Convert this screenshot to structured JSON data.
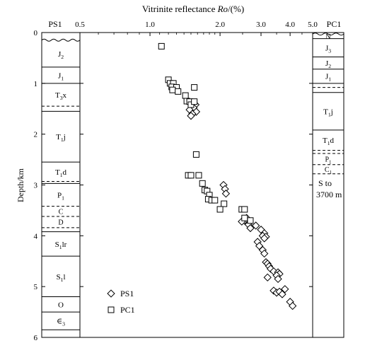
{
  "chart_data": {
    "type": "scatter",
    "title": "Vitrinite reflectance Ro/(%)",
    "title_parts": {
      "prefix": "Vitrinite reflectance ",
      "italic": "Ro",
      "suffix": "/(%)"
    },
    "xlabel": "Vitrinite reflectance Ro/(%)",
    "ylabel": "Depth/km",
    "x_scale": "log",
    "xlim": [
      0.5,
      5.0
    ],
    "ylim": [
      0,
      6
    ],
    "x_ticks": [
      {
        "value": 0.5,
        "label": "0.5"
      },
      {
        "value": 1.0,
        "label": "1.0"
      },
      {
        "value": 2.0,
        "label": "2.0"
      },
      {
        "value": 3.0,
        "label": "3.0"
      },
      {
        "value": 4.0,
        "label": "4.0"
      },
      {
        "value": 5.0,
        "label": "5.0"
      }
    ],
    "y_ticks": [
      {
        "value": 0,
        "label": "0"
      },
      {
        "value": 1,
        "label": "1"
      },
      {
        "value": 2,
        "label": "2"
      },
      {
        "value": 3,
        "label": "3"
      },
      {
        "value": 4,
        "label": "4"
      },
      {
        "value": 5,
        "label": "5"
      },
      {
        "value": 6,
        "label": "6"
      }
    ],
    "grid": false,
    "legend_position": "bottom-left",
    "series": [
      {
        "name": "PS1",
        "marker": "diamond",
        "points": [
          [
            1.57,
            1.42
          ],
          [
            1.54,
            1.48
          ],
          [
            1.48,
            1.52
          ],
          [
            1.58,
            1.56
          ],
          [
            1.52,
            1.6
          ],
          [
            1.5,
            1.64
          ],
          [
            2.07,
            3.0
          ],
          [
            2.1,
            3.08
          ],
          [
            2.12,
            3.17
          ],
          [
            2.6,
            3.65
          ],
          [
            2.55,
            3.7
          ],
          [
            2.48,
            3.72
          ],
          [
            2.65,
            3.78
          ],
          [
            2.7,
            3.85
          ],
          [
            2.85,
            3.8
          ],
          [
            3.0,
            3.88
          ],
          [
            3.1,
            3.95
          ],
          [
            3.05,
            4.0
          ],
          [
            3.15,
            4.02
          ],
          [
            3.1,
            4.05
          ],
          [
            2.9,
            4.12
          ],
          [
            2.95,
            4.2
          ],
          [
            3.05,
            4.28
          ],
          [
            3.1,
            4.35
          ],
          [
            3.15,
            4.52
          ],
          [
            3.2,
            4.55
          ],
          [
            3.25,
            4.6
          ],
          [
            3.3,
            4.65
          ],
          [
            3.4,
            4.7
          ],
          [
            3.55,
            4.72
          ],
          [
            3.6,
            4.75
          ],
          [
            3.5,
            4.78
          ],
          [
            3.2,
            4.82
          ],
          [
            3.55,
            4.85
          ],
          [
            3.4,
            5.08
          ],
          [
            3.5,
            5.12
          ],
          [
            3.6,
            5.1
          ],
          [
            3.8,
            5.05
          ],
          [
            3.7,
            5.15
          ],
          [
            4.0,
            5.3
          ],
          [
            4.1,
            5.38
          ]
        ]
      },
      {
        "name": "PC1",
        "marker": "square",
        "points": [
          [
            1.12,
            0.27
          ],
          [
            1.2,
            0.93
          ],
          [
            1.22,
            1.0
          ],
          [
            1.26,
            1.0
          ],
          [
            1.24,
            1.07
          ],
          [
            1.3,
            1.08
          ],
          [
            1.25,
            1.13
          ],
          [
            1.32,
            1.16
          ],
          [
            1.55,
            1.08
          ],
          [
            1.42,
            1.24
          ],
          [
            1.44,
            1.35
          ],
          [
            1.48,
            1.36
          ],
          [
            1.5,
            1.42
          ],
          [
            1.55,
            1.36
          ],
          [
            1.58,
            2.4
          ],
          [
            1.46,
            2.81
          ],
          [
            1.5,
            2.81
          ],
          [
            1.62,
            2.81
          ],
          [
            1.68,
            2.97
          ],
          [
            1.72,
            3.1
          ],
          [
            1.76,
            3.12
          ],
          [
            1.8,
            3.2
          ],
          [
            1.78,
            3.28
          ],
          [
            1.84,
            3.3
          ],
          [
            1.9,
            3.3
          ],
          [
            2.08,
            3.37
          ],
          [
            2.0,
            3.48
          ],
          [
            2.48,
            3.48
          ],
          [
            2.55,
            3.48
          ],
          [
            2.55,
            3.65
          ],
          [
            2.7,
            3.7
          ]
        ]
      }
    ]
  },
  "columns": {
    "left": {
      "title": "PS1",
      "layers": [
        {
          "label": "",
          "top": 0,
          "bottom": 0.15,
          "boundary": "wavy"
        },
        {
          "label": "J",
          "sub": "2",
          "top": 0.15,
          "bottom": 0.68,
          "boundary": "solid"
        },
        {
          "label": "J",
          "sub": "1",
          "top": 0.68,
          "bottom": 1.0,
          "boundary": "solid"
        },
        {
          "label": "T",
          "sub": "3",
          "suffix": "x",
          "top": 1.0,
          "bottom": 1.45,
          "boundary": "dashed"
        },
        {
          "label": "",
          "top": 1.45,
          "bottom": 1.55,
          "boundary": "solid"
        },
        {
          "label": "T",
          "sub": "1",
          "suffix": "j",
          "top": 1.55,
          "bottom": 2.55,
          "boundary": "solid"
        },
        {
          "label": "T",
          "sub": "1",
          "suffix": "d",
          "top": 2.55,
          "bottom": 2.93,
          "boundary": "dashed"
        },
        {
          "label": "",
          "top": 2.93,
          "bottom": 2.97,
          "boundary": "solid"
        },
        {
          "label": "P",
          "sub": "1",
          "top": 2.97,
          "bottom": 3.42,
          "boundary": "dashed"
        },
        {
          "label": "C",
          "top": 3.42,
          "bottom": 3.62,
          "boundary": "dashed"
        },
        {
          "label": "D",
          "top": 3.62,
          "bottom": 3.84,
          "boundary": "dashed"
        },
        {
          "label": "",
          "top": 3.84,
          "bottom": 3.92,
          "boundary": "solid"
        },
        {
          "label": "S",
          "sub": "1",
          "suffix": "lr",
          "top": 3.92,
          "bottom": 4.4,
          "boundary": "solid"
        },
        {
          "label": "S",
          "sub": "1",
          "suffix": "l",
          "top": 4.4,
          "bottom": 5.2,
          "boundary": "solid"
        },
        {
          "label": "O",
          "top": 5.2,
          "bottom": 5.5,
          "boundary": "solid"
        },
        {
          "label": "∈",
          "sub": "3",
          "top": 5.5,
          "bottom": 5.85,
          "boundary": "solid"
        }
      ]
    },
    "right": {
      "title": "PC1",
      "layers": [
        {
          "label": "",
          "top": 0,
          "bottom": 0.03,
          "boundary": "wavy"
        },
        {
          "label": "N",
          "top": 0.03,
          "bottom": 0.12,
          "boundary": "solid"
        },
        {
          "label": "J",
          "sub": "3",
          "top": 0.12,
          "bottom": 0.48,
          "boundary": "solid"
        },
        {
          "label": "J",
          "sub": "2",
          "top": 0.48,
          "bottom": 0.72,
          "boundary": "solid"
        },
        {
          "label": "J",
          "sub": "1",
          "top": 0.72,
          "bottom": 1.0,
          "boundary": "solid"
        },
        {
          "label": "",
          "top": 1.0,
          "bottom": 1.08,
          "boundary": "dashed"
        },
        {
          "label": "",
          "top": 1.08,
          "bottom": 1.18,
          "boundary": "solid"
        },
        {
          "label": "T",
          "sub": "1",
          "suffix": "j",
          "top": 1.18,
          "bottom": 1.92,
          "boundary": "solid"
        },
        {
          "label": "T",
          "sub": "1",
          "suffix": "d",
          "top": 1.92,
          "bottom": 2.32,
          "boundary": "dashed"
        },
        {
          "label": "",
          "top": 2.32,
          "bottom": 2.38,
          "boundary": "dashed"
        },
        {
          "label": "P",
          "sub": "1",
          "top": 2.38,
          "bottom": 2.6,
          "boundary": "dashed"
        },
        {
          "label": "C",
          "sub": "1",
          "top": 2.6,
          "bottom": 2.78,
          "boundary": "dashed"
        }
      ],
      "note_line1": "S   to",
      "note_line2": "3700 m"
    }
  }
}
